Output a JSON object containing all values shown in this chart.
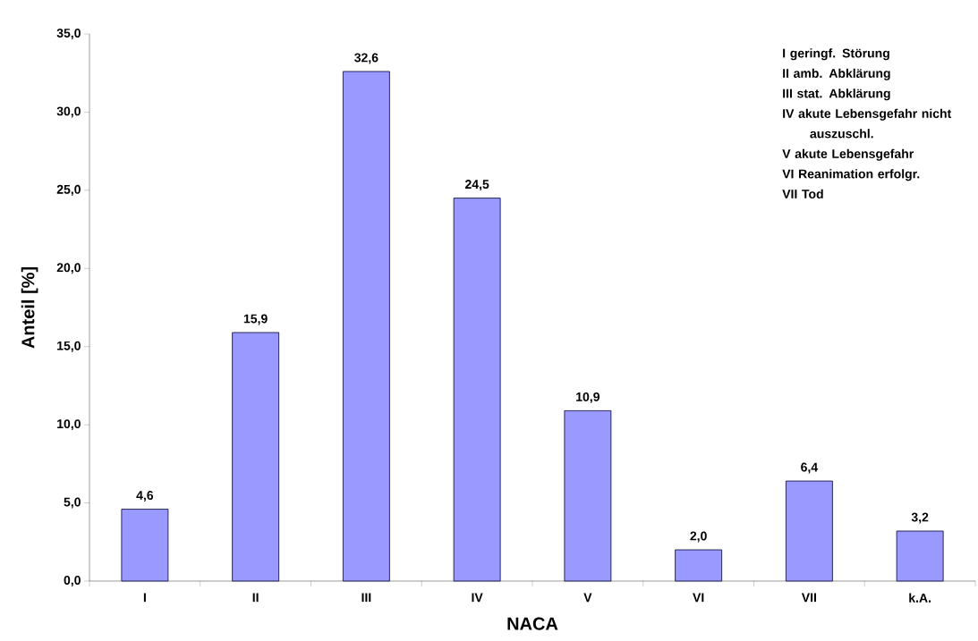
{
  "chart_data": {
    "type": "bar",
    "xlabel": "NACA",
    "ylabel": "Anteil [%]",
    "categories": [
      "I",
      "II",
      "III",
      "IV",
      "V",
      "VI",
      "VII",
      "k.A."
    ],
    "values": [
      4.6,
      15.9,
      32.6,
      24.5,
      10.9,
      2.0,
      6.4,
      3.2
    ],
    "value_labels": [
      "4,6",
      "15,9",
      "32,6",
      "24,5",
      "10,9",
      "2,0",
      "6,4",
      "3,2"
    ],
    "color": "#9999ff",
    "ylim": [
      0,
      35
    ],
    "yticks": [
      {
        "value": 0,
        "label": "0,0"
      },
      {
        "value": 5,
        "label": "5,0"
      },
      {
        "value": 10,
        "label": "10,0"
      },
      {
        "value": 15,
        "label": "15,0"
      },
      {
        "value": 20,
        "label": "20,0"
      },
      {
        "value": 25,
        "label": "25,0"
      },
      {
        "value": 30,
        "label": "30,0"
      },
      {
        "value": 35,
        "label": "35,0"
      }
    ],
    "grid": false,
    "annotations": [
      "I     geringf. Störung",
      "II    amb. Abklärung",
      "III   stat. Abklärung",
      "IV  akute Lebensgefahr nicht auszuschl.",
      "V   akute Lebensgefahr",
      "VI  Reanimation erfolgr.",
      "VII Tod"
    ]
  }
}
